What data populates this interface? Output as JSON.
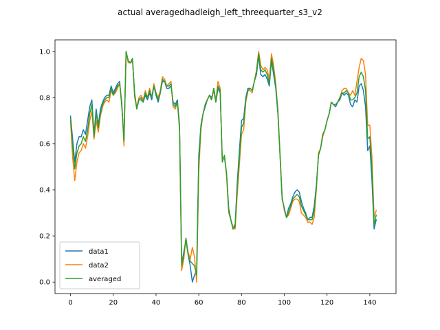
{
  "chart_data": {
    "type": "line",
    "title": "actual averagedhadleigh_left_threequarter_s3_v2",
    "xlabel": "",
    "ylabel": "",
    "xlim": [
      -7.25,
      152.25
    ],
    "ylim": [
      -0.05,
      1.05
    ],
    "xticks": [
      0,
      20,
      40,
      60,
      80,
      100,
      120,
      140
    ],
    "yticks": [
      0.0,
      0.2,
      0.4,
      0.6,
      0.8,
      1.0
    ],
    "ytick_labels": [
      "0.0",
      "0.2",
      "0.4",
      "0.6",
      "0.8",
      "1.0"
    ],
    "grid": false,
    "legend_position": "lower-left",
    "series": [
      {
        "name": "data1",
        "color": "#1f77b4",
        "values": [
          0.72,
          0.62,
          0.52,
          0.6,
          0.63,
          0.63,
          0.66,
          0.64,
          0.7,
          0.76,
          0.79,
          0.64,
          0.75,
          0.68,
          0.75,
          0.78,
          0.8,
          0.81,
          0.81,
          0.85,
          0.82,
          0.84,
          0.86,
          0.87,
          0.76,
          0.62,
          0.99,
          0.96,
          0.95,
          0.96,
          0.82,
          0.75,
          0.79,
          0.79,
          0.78,
          0.81,
          0.79,
          0.82,
          0.79,
          0.85,
          0.81,
          0.78,
          0.82,
          0.87,
          0.87,
          0.84,
          0.84,
          0.85,
          0.78,
          0.77,
          0.79,
          0.68,
          0.08,
          0.13,
          0.18,
          0.12,
          0.07,
          0.0,
          0.03,
          0.05,
          0.55,
          0.68,
          0.73,
          0.76,
          0.79,
          0.81,
          0.8,
          0.83,
          0.78,
          0.84,
          0.82,
          0.53,
          0.54,
          0.47,
          0.32,
          0.27,
          0.23,
          0.25,
          0.43,
          0.57,
          0.7,
          0.71,
          0.8,
          0.84,
          0.84,
          0.83,
          0.87,
          0.9,
          0.98,
          0.9,
          0.89,
          0.9,
          0.88,
          0.85,
          0.96,
          0.9,
          0.84,
          0.73,
          0.55,
          0.36,
          0.32,
          0.28,
          0.32,
          0.34,
          0.37,
          0.39,
          0.4,
          0.39,
          0.35,
          0.32,
          0.3,
          0.27,
          0.28,
          0.28,
          0.33,
          0.42,
          0.55,
          0.58,
          0.64,
          0.66,
          0.7,
          0.73,
          0.78,
          0.77,
          0.76,
          0.78,
          0.79,
          0.82,
          0.81,
          0.82,
          0.81,
          0.77,
          0.76,
          0.79,
          0.78,
          0.85,
          0.86,
          0.83,
          0.76,
          0.57,
          0.59,
          0.44,
          0.23,
          0.27
        ],
        "x_start": 0
      },
      {
        "name": "data2",
        "color": "#ff7f0e",
        "values": [
          0.7,
          0.54,
          0.44,
          0.52,
          0.56,
          0.57,
          0.6,
          0.58,
          0.63,
          0.7,
          0.74,
          0.62,
          0.7,
          0.65,
          0.72,
          0.76,
          0.78,
          0.79,
          0.78,
          0.83,
          0.81,
          0.82,
          0.84,
          0.86,
          0.78,
          0.59,
          1.0,
          0.95,
          0.95,
          0.97,
          0.8,
          0.76,
          0.8,
          0.81,
          0.79,
          0.83,
          0.8,
          0.84,
          0.8,
          0.86,
          0.82,
          0.8,
          0.83,
          0.89,
          0.88,
          0.85,
          0.86,
          0.87,
          0.76,
          0.75,
          0.78,
          0.66,
          0.05,
          0.1,
          0.19,
          0.13,
          0.1,
          0.15,
          0.11,
          0.0,
          0.48,
          0.66,
          0.73,
          0.77,
          0.79,
          0.81,
          0.79,
          0.84,
          0.79,
          0.87,
          0.84,
          0.52,
          0.55,
          0.46,
          0.3,
          0.27,
          0.24,
          0.23,
          0.38,
          0.51,
          0.64,
          0.66,
          0.78,
          0.83,
          0.83,
          0.82,
          0.87,
          0.92,
          1.0,
          0.94,
          0.92,
          0.93,
          0.92,
          0.88,
          0.99,
          0.94,
          0.86,
          0.75,
          0.56,
          0.37,
          0.31,
          0.28,
          0.29,
          0.32,
          0.35,
          0.36,
          0.36,
          0.35,
          0.3,
          0.29,
          0.28,
          0.26,
          0.26,
          0.25,
          0.28,
          0.4,
          0.56,
          0.58,
          0.63,
          0.66,
          0.7,
          0.73,
          0.78,
          0.77,
          0.77,
          0.78,
          0.8,
          0.83,
          0.84,
          0.84,
          0.82,
          0.81,
          0.83,
          0.81,
          0.87,
          0.93,
          0.97,
          0.96,
          0.9,
          0.68,
          0.68,
          0.54,
          0.28,
          0.31
        ],
        "x_start": 0
      },
      {
        "name": "averaged",
        "color": "#2ca02c",
        "values": [
          0.71,
          0.59,
          0.49,
          0.56,
          0.59,
          0.6,
          0.63,
          0.61,
          0.66,
          0.73,
          0.77,
          0.63,
          0.73,
          0.67,
          0.73,
          0.77,
          0.79,
          0.8,
          0.8,
          0.84,
          0.81,
          0.83,
          0.85,
          0.86,
          0.77,
          0.61,
          1.0,
          0.96,
          0.95,
          0.97,
          0.81,
          0.75,
          0.79,
          0.8,
          0.78,
          0.82,
          0.8,
          0.83,
          0.8,
          0.85,
          0.82,
          0.79,
          0.82,
          0.88,
          0.87,
          0.85,
          0.85,
          0.86,
          0.77,
          0.76,
          0.78,
          0.67,
          0.07,
          0.12,
          0.19,
          0.12,
          0.09,
          0.08,
          0.07,
          0.03,
          0.52,
          0.67,
          0.73,
          0.77,
          0.79,
          0.81,
          0.79,
          0.84,
          0.78,
          0.85,
          0.83,
          0.52,
          0.55,
          0.47,
          0.31,
          0.27,
          0.23,
          0.24,
          0.41,
          0.54,
          0.67,
          0.69,
          0.79,
          0.83,
          0.84,
          0.83,
          0.87,
          0.91,
          0.99,
          0.92,
          0.91,
          0.92,
          0.9,
          0.86,
          0.97,
          0.92,
          0.85,
          0.74,
          0.55,
          0.36,
          0.32,
          0.28,
          0.3,
          0.33,
          0.36,
          0.37,
          0.38,
          0.37,
          0.33,
          0.31,
          0.29,
          0.27,
          0.27,
          0.27,
          0.31,
          0.41,
          0.55,
          0.58,
          0.64,
          0.66,
          0.7,
          0.73,
          0.78,
          0.77,
          0.77,
          0.78,
          0.8,
          0.82,
          0.82,
          0.83,
          0.82,
          0.79,
          0.79,
          0.8,
          0.82,
          0.89,
          0.91,
          0.89,
          0.83,
          0.62,
          0.63,
          0.49,
          0.25,
          0.29
        ],
        "x_start": 0
      }
    ]
  }
}
